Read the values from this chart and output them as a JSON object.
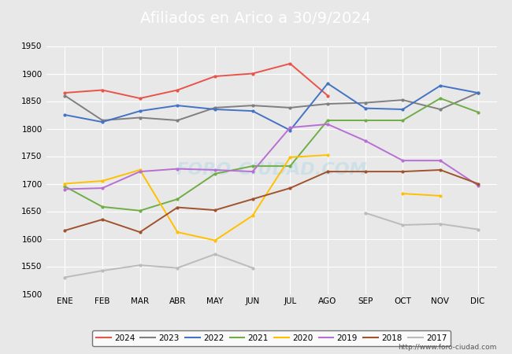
{
  "title": "Afiliados en Arico a 30/9/2024",
  "title_color": "white",
  "title_bg_color": "#4c7ebe",
  "months": [
    "ENE",
    "FEB",
    "MAR",
    "ABR",
    "MAY",
    "JUN",
    "JUL",
    "AGO",
    "SEP",
    "OCT",
    "NOV",
    "DIC"
  ],
  "ylim": [
    1500,
    1950
  ],
  "yticks": [
    1500,
    1550,
    1600,
    1650,
    1700,
    1750,
    1800,
    1850,
    1900,
    1950
  ],
  "series_order": [
    "2024",
    "2023",
    "2022",
    "2021",
    "2020",
    "2019",
    "2018",
    "2017"
  ],
  "series": {
    "2024": {
      "color": "#e8534a",
      "data": [
        1865,
        1870,
        1855,
        1870,
        1895,
        1900,
        1918,
        1860,
        null,
        null,
        null,
        null
      ]
    },
    "2023": {
      "color": "#7f7f7f",
      "data": [
        1860,
        1815,
        1820,
        1815,
        1838,
        1842,
        1838,
        1845,
        1847,
        1852,
        1835,
        1865
      ]
    },
    "2022": {
      "color": "#4472c4",
      "data": [
        1825,
        1812,
        1832,
        1842,
        1835,
        1832,
        1797,
        1882,
        1837,
        1835,
        1878,
        1865
      ]
    },
    "2021": {
      "color": "#70ad47",
      "data": [
        1695,
        1658,
        1651,
        1672,
        1718,
        1732,
        1732,
        1815,
        1815,
        1815,
        1855,
        1830
      ]
    },
    "2020": {
      "color": "#ffc000",
      "data": [
        1700,
        1705,
        1725,
        1612,
        1597,
        1642,
        1748,
        1752,
        null,
        1682,
        1678,
        null
      ]
    },
    "2019": {
      "color": "#b86fd4",
      "data": [
        1690,
        1692,
        1722,
        1727,
        1725,
        1722,
        1802,
        1808,
        1778,
        1742,
        1742,
        1697
      ]
    },
    "2018": {
      "color": "#a0522d",
      "data": [
        1615,
        1635,
        1612,
        1657,
        1652,
        1672,
        1692,
        1722,
        1722,
        1722,
        1725,
        1700
      ]
    },
    "2017": {
      "color": "#bbbbbb",
      "data": [
        1530,
        1542,
        1552,
        1547,
        1572,
        1547,
        null,
        null,
        1647,
        1625,
        1627,
        1617
      ]
    }
  },
  "background_color": "#e8e8e8",
  "plot_bg_color": "#e8e8e8",
  "grid_color": "white",
  "watermark": "FORO-CIUDAD.COM",
  "footer": "http://www.foro-ciudad.com"
}
